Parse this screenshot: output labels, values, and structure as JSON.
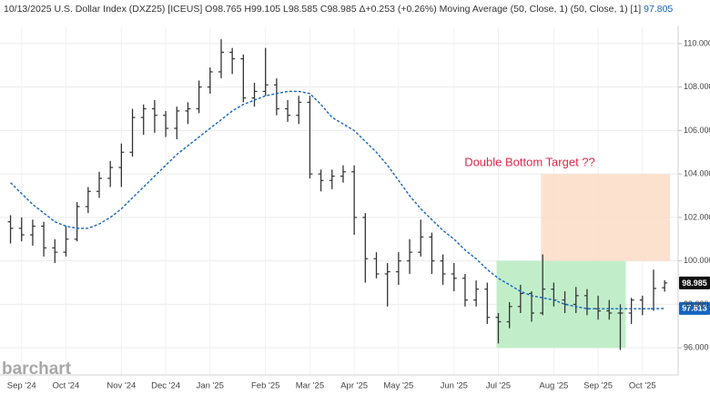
{
  "chart_data": {
    "type": "ohlc",
    "title": "10/13/2025 U.S. Dollar Index (DXZ25) [ICEUS] O98.765 H99.105 L98.585 C98.985 Δ+0.253 (+0.26%) Moving Average (50, Close, 1)  (50, Close, 1) [1]",
    "subtitle": "97.805",
    "watermark": "barchart",
    "annotation_text": "Double Bottom Target ??",
    "annotation_color": "#e8264a",
    "categories": [
      null,
      "Sep '24",
      null,
      null,
      null,
      "Oct '24",
      null,
      null,
      null,
      null,
      "Nov '24",
      null,
      null,
      null,
      "Dec '24",
      null,
      null,
      null,
      "Jan '25",
      null,
      null,
      null,
      null,
      "Feb '25",
      null,
      null,
      null,
      "Mar '25",
      null,
      null,
      null,
      "Apr '25",
      null,
      null,
      null,
      "May '25",
      null,
      null,
      null,
      null,
      "Jun '25",
      null,
      null,
      null,
      "Jul '25",
      null,
      null,
      null,
      null,
      "Aug '25",
      null,
      null,
      null,
      "Sep '25",
      null,
      null,
      null,
      "Oct '25",
      null,
      null
    ],
    "open": [
      101.8,
      101.5,
      101.2,
      101.6,
      100.6,
      100.4,
      101.0,
      102.5,
      103.2,
      103.8,
      104.3,
      105.0,
      106.6,
      107.0,
      106.7,
      106.1,
      106.9,
      107.0,
      108.0,
      108.7,
      109.6,
      109.3,
      107.5,
      107.8,
      108.1,
      107.0,
      106.7,
      107.3,
      104.0,
      103.7,
      103.9,
      104.1,
      102.0,
      100.1,
      99.4,
      99.5,
      100.0,
      100.4,
      101.1,
      100.0,
      99.4,
      99.2,
      98.2,
      98.7,
      97.4,
      97.2,
      97.9,
      98.5,
      97.6,
      98.7,
      98.2,
      98.0,
      98.4,
      97.8,
      97.7,
      97.6,
      97.6,
      98.2,
      97.8,
      98.765
    ],
    "high": [
      102.1,
      102.0,
      101.9,
      101.8,
      101.0,
      101.6,
      102.7,
      103.4,
      104.1,
      104.6,
      105.4,
      107.0,
      107.2,
      107.4,
      106.9,
      107.1,
      107.3,
      108.3,
      108.9,
      110.2,
      109.8,
      109.5,
      108.2,
      109.8,
      108.4,
      107.4,
      107.6,
      107.6,
      104.2,
      104.2,
      104.4,
      104.4,
      102.2,
      100.4,
      99.9,
      100.4,
      101.0,
      101.9,
      101.3,
      100.3,
      99.9,
      99.4,
      99.1,
      99.0,
      97.6,
      98.1,
      98.9,
      98.6,
      100.3,
      99.0,
      98.6,
      98.8,
      98.7,
      98.4,
      98.2,
      98.0,
      98.3,
      98.4,
      99.6,
      99.105
    ],
    "low": [
      100.8,
      100.9,
      100.7,
      100.2,
      99.9,
      100.2,
      100.9,
      102.2,
      102.9,
      103.4,
      103.4,
      104.8,
      105.8,
      105.9,
      105.7,
      105.6,
      106.3,
      106.8,
      107.7,
      108.4,
      108.6,
      107.3,
      107.1,
      107.6,
      106.7,
      106.4,
      106.3,
      103.8,
      103.2,
      103.3,
      103.6,
      101.2,
      99.0,
      99.2,
      97.9,
      98.9,
      99.4,
      100.2,
      99.4,
      98.9,
      98.6,
      97.9,
      97.9,
      97.1,
      96.2,
      96.9,
      97.6,
      97.2,
      97.5,
      97.9,
      97.6,
      97.6,
      97.5,
      97.3,
      97.3,
      95.9,
      97.1,
      97.5,
      97.7,
      98.585
    ],
    "close": [
      101.5,
      101.2,
      101.6,
      100.6,
      100.4,
      101.0,
      102.5,
      103.2,
      103.8,
      104.3,
      105.0,
      106.6,
      107.0,
      106.7,
      106.1,
      106.9,
      107.0,
      108.0,
      108.7,
      109.6,
      109.3,
      107.5,
      107.8,
      108.1,
      107.0,
      106.7,
      107.3,
      104.0,
      103.7,
      103.9,
      104.1,
      102.0,
      100.1,
      99.4,
      99.5,
      100.0,
      100.4,
      101.1,
      100.0,
      99.4,
      99.2,
      98.2,
      98.7,
      97.4,
      97.2,
      97.9,
      98.5,
      97.6,
      98.7,
      98.2,
      98.0,
      98.4,
      97.8,
      97.7,
      97.6,
      97.6,
      98.2,
      97.8,
      98.732,
      98.985
    ],
    "color": "#333333",
    "moving_average": {
      "color": "#1565c0",
      "values": [
        103.6,
        103.1,
        102.6,
        102.2,
        101.8,
        101.6,
        101.5,
        101.5,
        101.7,
        102.0,
        102.4,
        102.9,
        103.4,
        103.9,
        104.4,
        104.9,
        105.3,
        105.7,
        106.1,
        106.5,
        106.9,
        107.2,
        107.4,
        107.6,
        107.7,
        107.8,
        107.8,
        107.7,
        107.2,
        106.6,
        106.3,
        106.0,
        105.5,
        105.0,
        104.4,
        103.7,
        103.0,
        102.4,
        101.9,
        101.4,
        101.0,
        100.5,
        100.1,
        99.6,
        99.2,
        98.9,
        98.6,
        98.4,
        98.3,
        98.2,
        98.0,
        97.9,
        97.8,
        97.8,
        97.8,
        97.8,
        97.8,
        97.8,
        97.8,
        97.813
      ]
    },
    "zones": [
      {
        "ylim": [
          96,
          100
        ],
        "x_range": [
          44,
          55
        ],
        "color": "#b6ebc0"
      },
      {
        "ylim": [
          100,
          104
        ],
        "x_range": [
          48,
          59
        ],
        "color": "#fbdcc6"
      }
    ],
    "ylim": [
      94.75,
      110.75
    ],
    "yticks": [
      {
        "value": 96,
        "label": "96.000"
      },
      {
        "value": 98,
        "label": "98.000"
      },
      {
        "value": 100,
        "label": "100.000"
      },
      {
        "value": 102,
        "label": "102.000"
      },
      {
        "value": 104,
        "label": "104.000"
      },
      {
        "value": 106,
        "label": "106.000"
      },
      {
        "value": 108,
        "label": "108.000"
      },
      {
        "value": 110,
        "label": "110.000"
      }
    ],
    "grid": true
  }
}
